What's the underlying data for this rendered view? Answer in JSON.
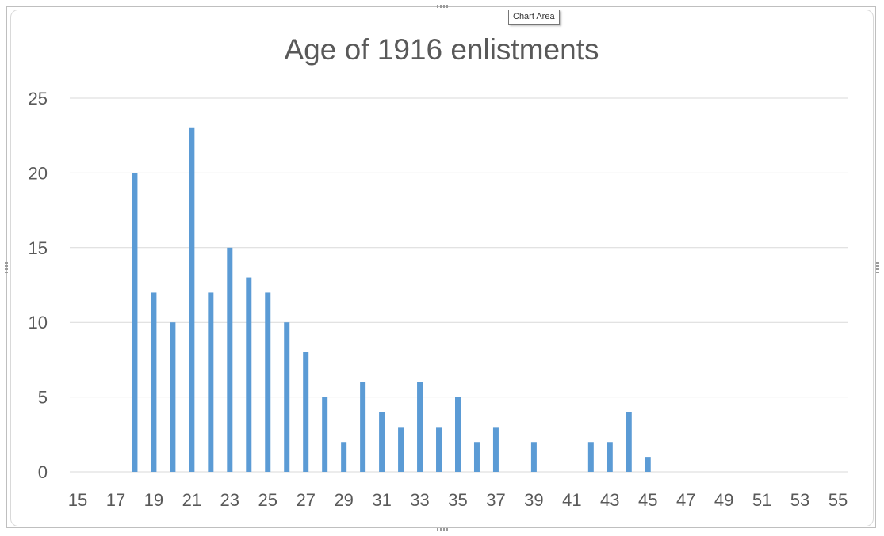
{
  "tooltip": {
    "text": "Chart Area"
  },
  "chart_data": {
    "type": "bar",
    "title": "Age of 1916 enlistments",
    "xlabel": "",
    "ylabel": "",
    "xlim": [
      15,
      55
    ],
    "xticks": [
      15,
      17,
      19,
      21,
      23,
      25,
      27,
      29,
      31,
      33,
      35,
      37,
      39,
      41,
      43,
      45,
      47,
      49,
      51,
      53,
      55
    ],
    "ylim": [
      0,
      25
    ],
    "yticks": [
      0,
      5,
      10,
      15,
      20,
      25
    ],
    "grid": true,
    "legend": "none",
    "bar_color": "#5B9BD5",
    "x": [
      18,
      19,
      20,
      21,
      22,
      23,
      24,
      25,
      26,
      27,
      28,
      29,
      30,
      31,
      32,
      33,
      34,
      35,
      36,
      37,
      39,
      42,
      43,
      44,
      45
    ],
    "values": [
      20,
      12,
      10,
      23,
      12,
      15,
      13,
      12,
      10,
      8,
      5,
      2,
      6,
      4,
      3,
      6,
      3,
      5,
      2,
      3,
      2,
      2,
      2,
      4,
      1
    ]
  }
}
